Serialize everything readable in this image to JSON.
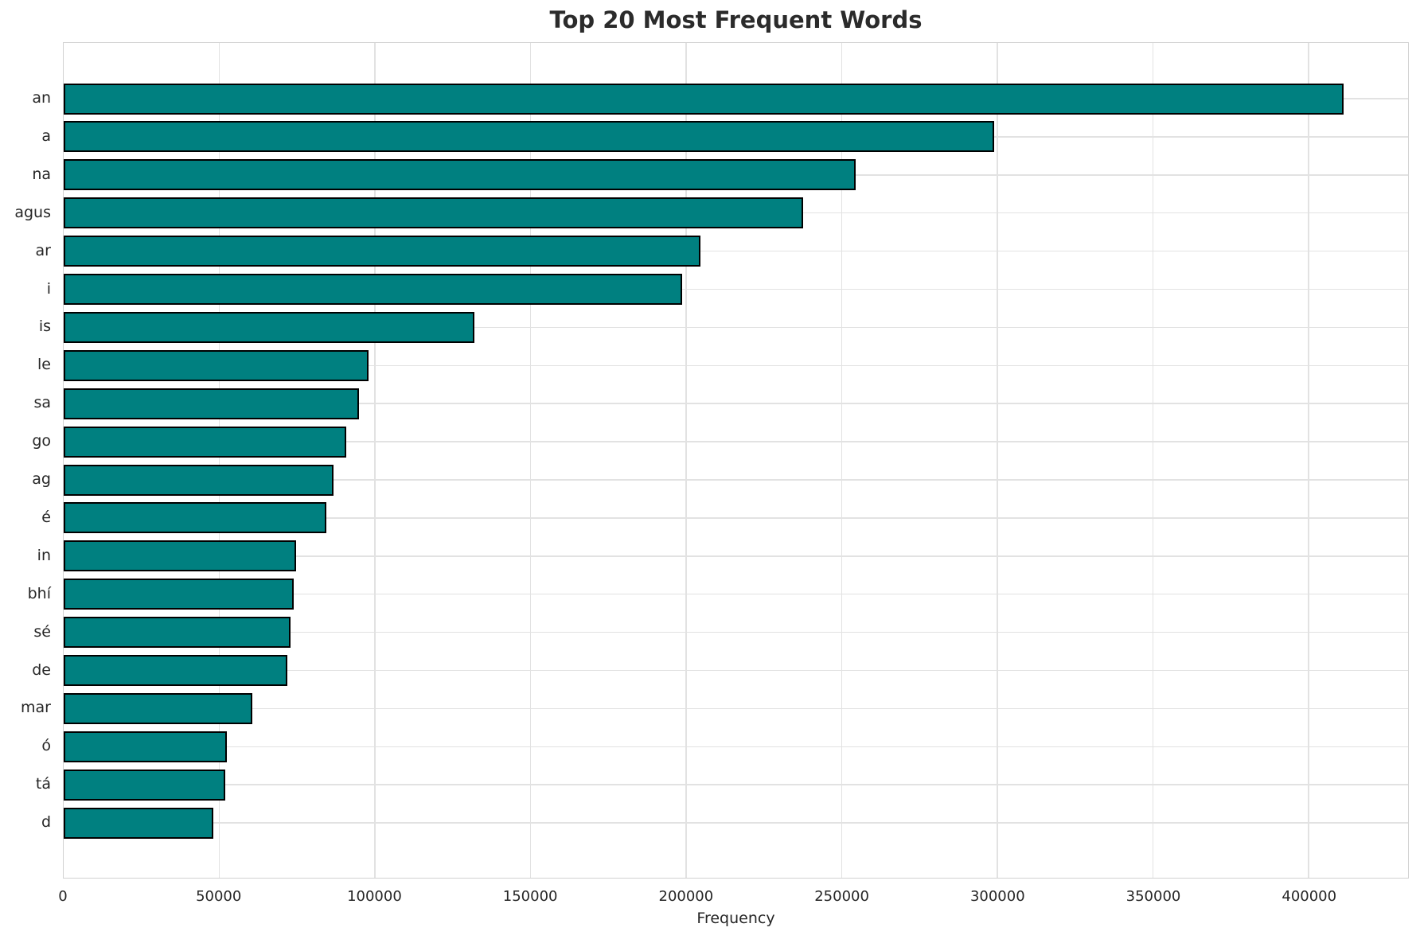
{
  "chart_data": {
    "type": "bar",
    "orientation": "horizontal",
    "title": "Top 20 Most Frequent Words",
    "xlabel": "Frequency",
    "ylabel": "",
    "categories": [
      "an",
      "a",
      "na",
      "agus",
      "ar",
      "i",
      "is",
      "le",
      "sa",
      "go",
      "ag",
      "é",
      "in",
      "bhí",
      "sé",
      "de",
      "mar",
      "ó",
      "tá",
      "d"
    ],
    "values": [
      411300,
      299100,
      254400,
      237600,
      204600,
      198800,
      131900,
      97900,
      94900,
      90700,
      86800,
      84500,
      74700,
      73900,
      72800,
      72000,
      60700,
      52400,
      51900,
      48000
    ],
    "xlim": [
      0,
      432000
    ],
    "xticks": [
      0,
      50000,
      100000,
      150000,
      200000,
      250000,
      300000,
      350000,
      400000
    ],
    "grid": true,
    "legend": false,
    "colors": {
      "bar_fill": "#008080",
      "bar_edge": "#000000",
      "grid": "#e2e2e2",
      "spine": "#d2d2d2",
      "text": "#262626",
      "title": "#2b2b2b"
    }
  }
}
